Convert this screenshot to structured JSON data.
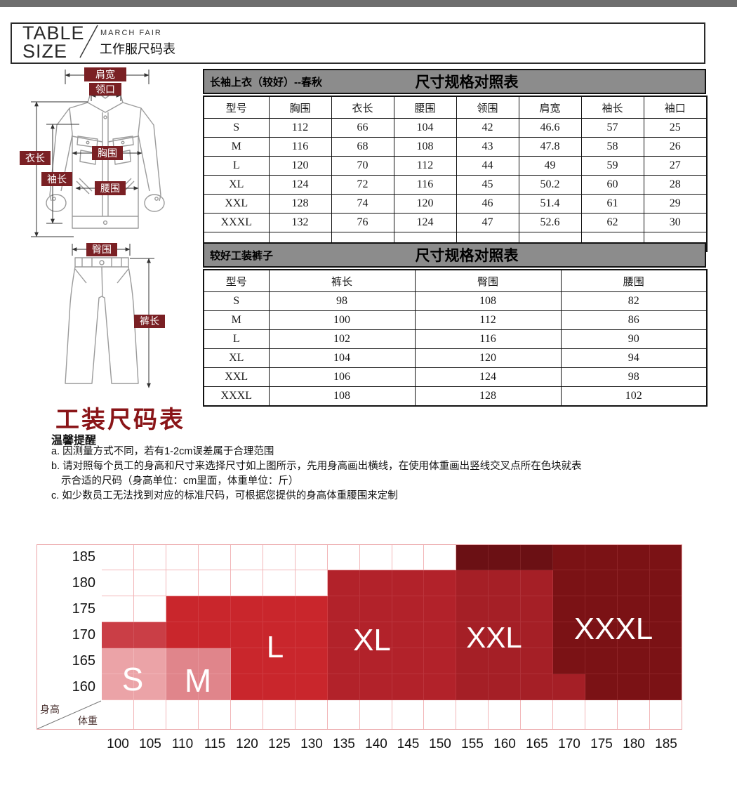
{
  "header": {
    "title_line1": "TABLE",
    "title_line2": "SIZE",
    "brand": "MARCH FAIR",
    "subtitle": "工作服尺码表"
  },
  "jacket_diagram": {
    "labels": {
      "shoulder": "肩宽",
      "collar": "领口",
      "length": "衣长",
      "sleeve": "袖长",
      "chest": "胸围",
      "waist": "腰围"
    },
    "label_bg": "#7a2024"
  },
  "pants_diagram": {
    "labels": {
      "hip": "臀围",
      "length": "裤长"
    },
    "label_bg": "#7a2024"
  },
  "top_table": {
    "title_left": "长袖上衣（较好）--春秋",
    "title_right": "尺寸规格对照表",
    "columns": [
      "型号",
      "胸围",
      "衣长",
      "腰围",
      "领围",
      "肩宽",
      "袖长",
      "袖口"
    ],
    "rows": [
      [
        "S",
        "112",
        "66",
        "104",
        "42",
        "46.6",
        "57",
        "25"
      ],
      [
        "M",
        "116",
        "68",
        "108",
        "43",
        "47.8",
        "58",
        "26"
      ],
      [
        "L",
        "120",
        "70",
        "112",
        "44",
        "49",
        "59",
        "27"
      ],
      [
        "XL",
        "124",
        "72",
        "116",
        "45",
        "50.2",
        "60",
        "28"
      ],
      [
        "XXL",
        "128",
        "74",
        "120",
        "46",
        "51.4",
        "61",
        "29"
      ],
      [
        "XXXL",
        "132",
        "76",
        "124",
        "47",
        "52.6",
        "62",
        "30"
      ],
      [
        "",
        "",
        "",
        "",
        "",
        "",
        "",
        ""
      ]
    ]
  },
  "pants_table": {
    "title_left": "较好工装裤子",
    "title_right": "尺寸规格对照表",
    "columns": [
      "型号",
      "裤长",
      "臀围",
      "腰围"
    ],
    "rows": [
      [
        "S",
        "98",
        "108",
        "82"
      ],
      [
        "M",
        "100",
        "112",
        "86"
      ],
      [
        "L",
        "102",
        "116",
        "90"
      ],
      [
        "XL",
        "104",
        "120",
        "94"
      ],
      [
        "XXL",
        "106",
        "124",
        "98"
      ],
      [
        "XXXL",
        "108",
        "128",
        "102"
      ]
    ]
  },
  "notes": {
    "heading": "工装尺码表",
    "subheading": "温馨提醒",
    "items": [
      "a. 因测量方式不同，若有1-2cm误差属于合理范围",
      "b. 请对照每个员工的身高和尺寸来选择尺寸如上图所示，先用身高画出横线，在使用体重画出竖线交叉点所在色块就表",
      "示合适的尺码（身高单位：cm里面，体重单位：斤）",
      "c. 如少数员工无法找到对应的标准尺码，可根据您提供的身高体重腰围来定制"
    ]
  },
  "chart_data": {
    "type": "heatmap",
    "title": "身高体重尺码选择图",
    "x_axis_label": "体重",
    "y_axis_label": "身高",
    "x_ticks": [
      "100",
      "105",
      "110",
      "115",
      "120",
      "125",
      "130",
      "135",
      "140",
      "145",
      "150",
      "155",
      "160",
      "165",
      "170",
      "175",
      "180",
      "185"
    ],
    "y_ticks": [
      "185",
      "180",
      "175",
      "170",
      "165",
      "160"
    ],
    "rows": [
      "...........DDD3333",
      "......EXXXX2223333",
      "..LLLLLXXXX2223333",
      "RRLLLLLXXXX2223333",
      "SSMMLLLXXXX2223333",
      "SSMMLLLXXXX2222333"
    ],
    "palette": {
      ".": [
        "#ffffff",
        "#f2b6b8"
      ],
      "S": [
        "#eba3a7",
        "#f1b5b8"
      ],
      "M": [
        "#e0858b",
        "#e69499"
      ],
      "R": [
        "#ca3e46",
        "#d05058"
      ],
      "L": [
        "#c9262c",
        "#d03a40"
      ],
      "X": [
        "#b2222a",
        "#bb343c"
      ],
      "2": [
        "#a51f26",
        "#af3138"
      ],
      "3": [
        "#7b1215",
        "#8d2326"
      ],
      "D": [
        "#6b1014",
        "#7d2124"
      ]
    },
    "size_regions": [
      {
        "label": "S",
        "height_range": [
          160,
          170
        ],
        "weight_range": [
          100,
          105
        ]
      },
      {
        "label": "M",
        "height_range": [
          160,
          165
        ],
        "weight_range": [
          110,
          115
        ]
      },
      {
        "label": "L",
        "height_range": [
          160,
          175
        ],
        "weight_range": [
          110,
          130
        ]
      },
      {
        "label": "XL",
        "height_range": [
          160,
          180
        ],
        "weight_range": [
          135,
          150
        ]
      },
      {
        "label": "XXL",
        "height_range": [
          160,
          185
        ],
        "weight_range": [
          155,
          165
        ]
      },
      {
        "label": "XXXL",
        "height_range": [
          160,
          185
        ],
        "weight_range": [
          170,
          185
        ]
      }
    ],
    "size_labels": [
      {
        "text": "S",
        "x": 137,
        "y": 192,
        "fs": 46
      },
      {
        "text": "M",
        "x": 230,
        "y": 194,
        "fs": 46
      },
      {
        "text": "L",
        "x": 340,
        "y": 147,
        "fs": 44
      },
      {
        "text": "XL",
        "x": 478,
        "y": 137,
        "fs": 44
      },
      {
        "text": "XXL",
        "x": 652,
        "y": 133,
        "fs": 42
      },
      {
        "text": "XXXL",
        "x": 822,
        "y": 121,
        "fs": 44
      }
    ]
  }
}
